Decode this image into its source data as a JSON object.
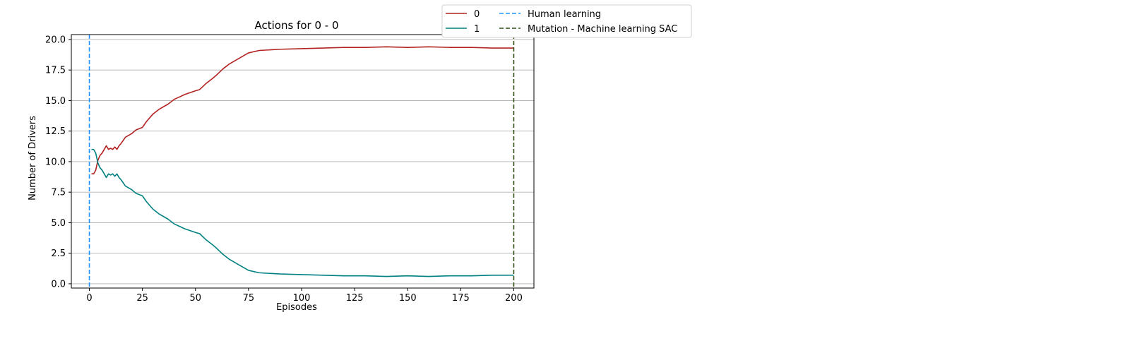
{
  "chart_data": {
    "type": "line",
    "title": "Actions for 0 - 0",
    "xlabel": "Episodes",
    "ylabel": "Number of Drivers",
    "xlim": [
      -8.5,
      209.5
    ],
    "ylim": [
      -0.35,
      20.4
    ],
    "x_ticks": [
      0,
      25,
      50,
      75,
      100,
      125,
      150,
      175,
      200
    ],
    "y_ticks": [
      0.0,
      2.5,
      5.0,
      7.5,
      10.0,
      12.5,
      15.0,
      17.5,
      20.0
    ],
    "x_tick_labels": [
      "0",
      "25",
      "50",
      "75",
      "100",
      "125",
      "150",
      "175",
      "200"
    ],
    "y_tick_labels": [
      "0.0",
      "2.5",
      "5.0",
      "7.5",
      "10.0",
      "12.5",
      "15.0",
      "17.5",
      "20.0"
    ],
    "grid": "horizontal",
    "legend_position": "outside top-right",
    "series": [
      {
        "name": "0",
        "color": "#b22222",
        "x": [
          1,
          2,
          3,
          4,
          5,
          6,
          8,
          9,
          10,
          11,
          12,
          13,
          14,
          15,
          17,
          20,
          22,
          25,
          27,
          30,
          33,
          37,
          40,
          45,
          50,
          52,
          55,
          58,
          60,
          63,
          66,
          70,
          75,
          80,
          90,
          100,
          110,
          120,
          130,
          140,
          150,
          160,
          170,
          180,
          190,
          200
        ],
        "values": [
          9.0,
          9.0,
          9.3,
          10.1,
          10.5,
          10.7,
          11.3,
          11.0,
          11.1,
          11.0,
          11.2,
          11.0,
          11.3,
          11.5,
          12.0,
          12.3,
          12.6,
          12.8,
          13.3,
          13.9,
          14.3,
          14.7,
          15.1,
          15.5,
          15.8,
          15.9,
          16.4,
          16.8,
          17.1,
          17.6,
          18.0,
          18.4,
          18.9,
          19.1,
          19.2,
          19.25,
          19.3,
          19.35,
          19.35,
          19.4,
          19.35,
          19.4,
          19.35,
          19.35,
          19.3,
          19.3
        ]
      },
      {
        "name": "1",
        "color": "#008080",
        "x": [
          1,
          2,
          3,
          4,
          5,
          6,
          8,
          9,
          10,
          11,
          12,
          13,
          14,
          15,
          17,
          20,
          22,
          25,
          27,
          30,
          33,
          37,
          40,
          45,
          50,
          52,
          55,
          58,
          60,
          63,
          66,
          70,
          75,
          80,
          90,
          100,
          110,
          120,
          130,
          140,
          150,
          160,
          170,
          180,
          190,
          200
        ],
        "values": [
          11.0,
          11.0,
          10.7,
          9.9,
          9.5,
          9.3,
          8.7,
          9.0,
          8.9,
          9.0,
          8.8,
          9.0,
          8.7,
          8.5,
          8.0,
          7.7,
          7.4,
          7.2,
          6.7,
          6.1,
          5.7,
          5.3,
          4.9,
          4.5,
          4.2,
          4.1,
          3.6,
          3.2,
          2.9,
          2.4,
          2.0,
          1.6,
          1.1,
          0.9,
          0.8,
          0.75,
          0.7,
          0.65,
          0.65,
          0.6,
          0.65,
          0.6,
          0.65,
          0.65,
          0.7,
          0.7
        ]
      }
    ],
    "vertical_lines": [
      {
        "name": "Human learning",
        "x": 0,
        "color": "#1e90ff"
      },
      {
        "name": "Mutation - Machine learning SAC",
        "x": 200,
        "color": "#2f4f14"
      }
    ]
  }
}
